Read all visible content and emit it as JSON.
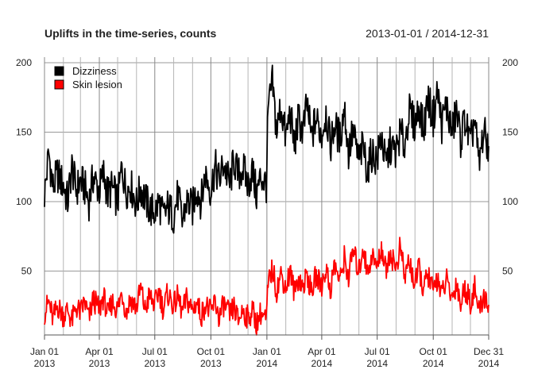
{
  "chart_data": {
    "type": "line",
    "title": "Uplifts in the time-series, counts",
    "subtitle": "2013-01-01 / 2014-12-31",
    "x_range": [
      "2013-01-01",
      "2014-12-31"
    ],
    "ylim": [
      4,
      204
    ],
    "y_ticks": [
      50,
      100,
      150,
      200
    ],
    "x_ticks": [
      {
        "date": "2013-01-01",
        "line1": "Jan 01",
        "line2": "2013"
      },
      {
        "date": "2013-04-01",
        "line1": "Apr 01",
        "line2": "2013"
      },
      {
        "date": "2013-07-01",
        "line1": "Jul 01",
        "line2": "2013"
      },
      {
        "date": "2013-10-01",
        "line1": "Oct 01",
        "line2": "2013"
      },
      {
        "date": "2014-01-01",
        "line1": "Jan 01",
        "line2": "2014"
      },
      {
        "date": "2014-04-01",
        "line1": "Apr 01",
        "line2": "2014"
      },
      {
        "date": "2014-07-01",
        "line1": "Jul 01",
        "line2": "2014"
      },
      {
        "date": "2014-10-01",
        "line1": "Oct 01",
        "line2": "2014"
      },
      {
        "date": "2014-12-31",
        "line1": "Dec 31",
        "line2": "2014"
      }
    ],
    "grid": true,
    "legend_position": "top-left",
    "series": [
      {
        "name": "Dizziness",
        "color": "#000000",
        "points": [
          [
            "2013-01-01",
            105
          ],
          [
            "2013-01-08",
            135
          ],
          [
            "2013-01-15",
            110
          ],
          [
            "2013-01-22",
            120
          ],
          [
            "2013-02-01",
            112
          ],
          [
            "2013-02-08",
            100
          ],
          [
            "2013-02-15",
            125
          ],
          [
            "2013-02-22",
            108
          ],
          [
            "2013-03-01",
            115
          ],
          [
            "2013-03-08",
            110
          ],
          [
            "2013-03-15",
            100
          ],
          [
            "2013-03-22",
            118
          ],
          [
            "2013-04-01",
            108
          ],
          [
            "2013-04-08",
            120
          ],
          [
            "2013-04-15",
            105
          ],
          [
            "2013-04-22",
            110
          ],
          [
            "2013-05-01",
            100
          ],
          [
            "2013-05-08",
            125
          ],
          [
            "2013-05-15",
            108
          ],
          [
            "2013-05-22",
            112
          ],
          [
            "2013-06-01",
            98
          ],
          [
            "2013-06-08",
            110
          ],
          [
            "2013-06-15",
            102
          ],
          [
            "2013-06-22",
            95
          ],
          [
            "2013-07-01",
            92
          ],
          [
            "2013-07-08",
            100
          ],
          [
            "2013-07-15",
            88
          ],
          [
            "2013-07-22",
            96
          ],
          [
            "2013-08-01",
            90
          ],
          [
            "2013-08-08",
            105
          ],
          [
            "2013-08-15",
            85
          ],
          [
            "2013-08-22",
            100
          ],
          [
            "2013-09-01",
            95
          ],
          [
            "2013-09-08",
            110
          ],
          [
            "2013-09-15",
            100
          ],
          [
            "2013-09-22",
            120
          ],
          [
            "2013-10-01",
            108
          ],
          [
            "2013-10-08",
            125
          ],
          [
            "2013-10-15",
            115
          ],
          [
            "2013-10-22",
            128
          ],
          [
            "2013-11-01",
            112
          ],
          [
            "2013-11-08",
            130
          ],
          [
            "2013-11-15",
            118
          ],
          [
            "2013-11-22",
            125
          ],
          [
            "2013-12-01",
            112
          ],
          [
            "2013-12-08",
            122
          ],
          [
            "2013-12-15",
            105
          ],
          [
            "2013-12-22",
            118
          ],
          [
            "2013-12-31",
            112
          ],
          [
            "2014-01-03",
            165
          ],
          [
            "2014-01-10",
            185
          ],
          [
            "2014-01-17",
            150
          ],
          [
            "2014-01-24",
            170
          ],
          [
            "2014-02-01",
            145
          ],
          [
            "2014-02-08",
            165
          ],
          [
            "2014-02-15",
            140
          ],
          [
            "2014-02-22",
            160
          ],
          [
            "2014-03-01",
            150
          ],
          [
            "2014-03-08",
            170
          ],
          [
            "2014-03-15",
            145
          ],
          [
            "2014-03-22",
            160
          ],
          [
            "2014-04-01",
            148
          ],
          [
            "2014-04-08",
            165
          ],
          [
            "2014-04-15",
            140
          ],
          [
            "2014-04-22",
            155
          ],
          [
            "2014-05-01",
            145
          ],
          [
            "2014-05-08",
            168
          ],
          [
            "2014-05-15",
            135
          ],
          [
            "2014-05-22",
            150
          ],
          [
            "2014-06-01",
            130
          ],
          [
            "2014-06-08",
            140
          ],
          [
            "2014-06-15",
            122
          ],
          [
            "2014-06-22",
            135
          ],
          [
            "2014-07-01",
            130
          ],
          [
            "2014-07-08",
            148
          ],
          [
            "2014-07-15",
            125
          ],
          [
            "2014-07-22",
            140
          ],
          [
            "2014-08-01",
            135
          ],
          [
            "2014-08-08",
            150
          ],
          [
            "2014-08-15",
            140
          ],
          [
            "2014-08-22",
            165
          ],
          [
            "2014-09-01",
            155
          ],
          [
            "2014-09-08",
            170
          ],
          [
            "2014-09-15",
            150
          ],
          [
            "2014-09-22",
            175
          ],
          [
            "2014-10-01",
            160
          ],
          [
            "2014-10-08",
            180
          ],
          [
            "2014-10-15",
            155
          ],
          [
            "2014-10-22",
            170
          ],
          [
            "2014-11-01",
            150
          ],
          [
            "2014-11-08",
            165
          ],
          [
            "2014-11-15",
            145
          ],
          [
            "2014-11-22",
            160
          ],
          [
            "2014-12-01",
            140
          ],
          [
            "2014-12-08",
            160
          ],
          [
            "2014-12-15",
            125
          ],
          [
            "2014-12-22",
            150
          ],
          [
            "2014-12-31",
            140
          ]
        ]
      },
      {
        "name": "Skin lesion",
        "color": "#ff0000",
        "points": [
          [
            "2013-01-01",
            20
          ],
          [
            "2013-01-08",
            28
          ],
          [
            "2013-01-15",
            15
          ],
          [
            "2013-01-22",
            25
          ],
          [
            "2013-02-01",
            18
          ],
          [
            "2013-02-08",
            22
          ],
          [
            "2013-02-15",
            14
          ],
          [
            "2013-02-22",
            24
          ],
          [
            "2013-03-01",
            20
          ],
          [
            "2013-03-08",
            28
          ],
          [
            "2013-03-15",
            16
          ],
          [
            "2013-03-22",
            30
          ],
          [
            "2013-04-01",
            22
          ],
          [
            "2013-04-08",
            32
          ],
          [
            "2013-04-15",
            18
          ],
          [
            "2013-04-22",
            28
          ],
          [
            "2013-05-01",
            22
          ],
          [
            "2013-05-08",
            35
          ],
          [
            "2013-05-15",
            20
          ],
          [
            "2013-05-22",
            30
          ],
          [
            "2013-06-01",
            24
          ],
          [
            "2013-06-08",
            38
          ],
          [
            "2013-06-15",
            22
          ],
          [
            "2013-06-22",
            32
          ],
          [
            "2013-07-01",
            26
          ],
          [
            "2013-07-08",
            36
          ],
          [
            "2013-07-15",
            22
          ],
          [
            "2013-07-22",
            34
          ],
          [
            "2013-08-01",
            25
          ],
          [
            "2013-08-08",
            32
          ],
          [
            "2013-08-15",
            20
          ],
          [
            "2013-08-22",
            30
          ],
          [
            "2013-09-01",
            22
          ],
          [
            "2013-09-08",
            28
          ],
          [
            "2013-09-15",
            18
          ],
          [
            "2013-09-22",
            26
          ],
          [
            "2013-10-01",
            20
          ],
          [
            "2013-10-08",
            28
          ],
          [
            "2013-10-15",
            16
          ],
          [
            "2013-10-22",
            26
          ],
          [
            "2013-11-01",
            18
          ],
          [
            "2013-11-08",
            24
          ],
          [
            "2013-11-15",
            14
          ],
          [
            "2013-11-22",
            22
          ],
          [
            "2013-12-01",
            16
          ],
          [
            "2013-12-08",
            22
          ],
          [
            "2013-12-15",
            12
          ],
          [
            "2013-12-22",
            20
          ],
          [
            "2013-12-31",
            14
          ],
          [
            "2014-01-03",
            40
          ],
          [
            "2014-01-10",
            52
          ],
          [
            "2014-01-17",
            36
          ],
          [
            "2014-01-24",
            48
          ],
          [
            "2014-02-01",
            38
          ],
          [
            "2014-02-08",
            50
          ],
          [
            "2014-02-15",
            35
          ],
          [
            "2014-02-22",
            46
          ],
          [
            "2014-03-01",
            38
          ],
          [
            "2014-03-08",
            48
          ],
          [
            "2014-03-15",
            34
          ],
          [
            "2014-03-22",
            46
          ],
          [
            "2014-04-01",
            40
          ],
          [
            "2014-04-08",
            52
          ],
          [
            "2014-04-15",
            36
          ],
          [
            "2014-04-22",
            55
          ],
          [
            "2014-05-01",
            42
          ],
          [
            "2014-05-08",
            60
          ],
          [
            "2014-05-15",
            45
          ],
          [
            "2014-05-22",
            65
          ],
          [
            "2014-06-01",
            50
          ],
          [
            "2014-06-08",
            68
          ],
          [
            "2014-06-15",
            48
          ],
          [
            "2014-06-22",
            62
          ],
          [
            "2014-07-01",
            52
          ],
          [
            "2014-07-08",
            68
          ],
          [
            "2014-07-15",
            50
          ],
          [
            "2014-07-22",
            64
          ],
          [
            "2014-08-01",
            52
          ],
          [
            "2014-08-08",
            68
          ],
          [
            "2014-08-15",
            45
          ],
          [
            "2014-08-22",
            58
          ],
          [
            "2014-09-01",
            40
          ],
          [
            "2014-09-08",
            52
          ],
          [
            "2014-09-15",
            36
          ],
          [
            "2014-09-22",
            48
          ],
          [
            "2014-10-01",
            35
          ],
          [
            "2014-10-08",
            46
          ],
          [
            "2014-10-15",
            32
          ],
          [
            "2014-10-22",
            44
          ],
          [
            "2014-11-01",
            30
          ],
          [
            "2014-11-08",
            42
          ],
          [
            "2014-11-15",
            26
          ],
          [
            "2014-11-22",
            38
          ],
          [
            "2014-12-01",
            28
          ],
          [
            "2014-12-08",
            38
          ],
          [
            "2014-12-15",
            20
          ],
          [
            "2014-12-22",
            32
          ],
          [
            "2014-12-31",
            26
          ]
        ]
      }
    ]
  }
}
